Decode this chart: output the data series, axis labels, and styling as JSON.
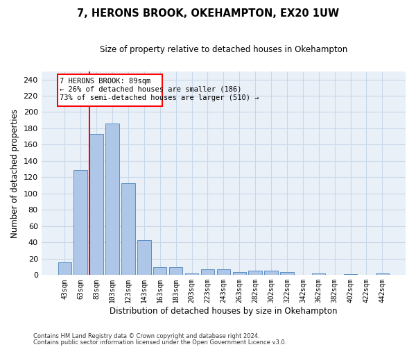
{
  "title": "7, HERONS BROOK, OKEHAMPTON, EX20 1UW",
  "subtitle": "Size of property relative to detached houses in Okehampton",
  "xlabel": "Distribution of detached houses by size in Okehampton",
  "ylabel": "Number of detached properties",
  "categories": [
    "43sqm",
    "63sqm",
    "83sqm",
    "103sqm",
    "123sqm",
    "143sqm",
    "163sqm",
    "183sqm",
    "203sqm",
    "223sqm",
    "243sqm",
    "263sqm",
    "282sqm",
    "302sqm",
    "322sqm",
    "342sqm",
    "362sqm",
    "382sqm",
    "402sqm",
    "422sqm",
    "442sqm"
  ],
  "values": [
    16,
    129,
    173,
    186,
    113,
    43,
    10,
    10,
    2,
    7,
    7,
    4,
    5,
    5,
    4,
    0,
    2,
    0,
    1,
    0,
    2
  ],
  "bar_color": "#aec6e8",
  "bar_edge_color": "#5a8fc0",
  "property_line_label": "7 HERONS BROOK: 89sqm",
  "annotation_line1": "← 26% of detached houses are smaller (186)",
  "annotation_line2": "73% of semi-detached houses are larger (510) →",
  "ylim": [
    0,
    250
  ],
  "yticks": [
    0,
    20,
    40,
    60,
    80,
    100,
    120,
    140,
    160,
    180,
    200,
    220,
    240
  ],
  "grid_color": "#c8d8e8",
  "background_color": "#eaf0f8",
  "footer_line1": "Contains HM Land Registry data © Crown copyright and database right 2024.",
  "footer_line2": "Contains public sector information licensed under the Open Government Licence v3.0."
}
